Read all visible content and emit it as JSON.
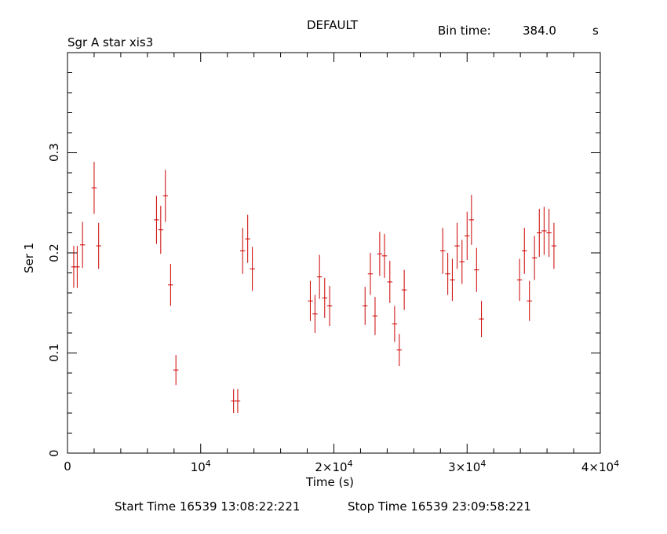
{
  "header": {
    "title": "DEFAULT",
    "source": "Sgr A star xis3",
    "bin_time_label": "Bin time:",
    "bin_time_value": "384.0",
    "bin_time_unit": "s"
  },
  "footer": {
    "start_time": "Start Time 16539 13:08:22:221",
    "stop_time": "Stop Time 16539 23:09:58:221"
  },
  "chart_data": {
    "type": "scatter",
    "title": "DEFAULT",
    "xlabel": "Time (s)",
    "ylabel": "Ser 1",
    "xlim": [
      0,
      40000
    ],
    "ylim": [
      0,
      0.4
    ],
    "grid": false,
    "color": "#cc0000",
    "x_ticks": [
      {
        "value": 0,
        "base": "0",
        "exp": ""
      },
      {
        "value": 10000,
        "base": "10",
        "exp": "4"
      },
      {
        "value": 20000,
        "base": "2×10",
        "exp": "4"
      },
      {
        "value": 30000,
        "base": "3×10",
        "exp": "4"
      },
      {
        "value": 40000,
        "base": "4×10",
        "exp": "4"
      }
    ],
    "y_ticks": [
      {
        "value": 0,
        "label": "0"
      },
      {
        "value": 0.1,
        "label": "0.1"
      },
      {
        "value": 0.2,
        "label": "0.2"
      },
      {
        "value": 0.3,
        "label": "0.3"
      }
    ],
    "xerr": 192,
    "series": [
      {
        "points": [
          {
            "x": 470,
            "y": 0.186,
            "dy": 0.021
          },
          {
            "x": 730,
            "y": 0.186,
            "dy": 0.021
          },
          {
            "x": 1130,
            "y": 0.208,
            "dy": 0.023
          },
          {
            "x": 2000,
            "y": 0.265,
            "dy": 0.026
          },
          {
            "x": 2340,
            "y": 0.207,
            "dy": 0.023
          },
          {
            "x": 6680,
            "y": 0.233,
            "dy": 0.024
          },
          {
            "x": 7000,
            "y": 0.223,
            "dy": 0.024
          },
          {
            "x": 7350,
            "y": 0.257,
            "dy": 0.026
          },
          {
            "x": 7740,
            "y": 0.168,
            "dy": 0.021
          },
          {
            "x": 8140,
            "y": 0.083,
            "dy": 0.015
          },
          {
            "x": 12470,
            "y": 0.052,
            "dy": 0.012
          },
          {
            "x": 12780,
            "y": 0.052,
            "dy": 0.012
          },
          {
            "x": 13150,
            "y": 0.202,
            "dy": 0.023
          },
          {
            "x": 13530,
            "y": 0.214,
            "dy": 0.024
          },
          {
            "x": 13880,
            "y": 0.184,
            "dy": 0.022
          },
          {
            "x": 18230,
            "y": 0.152,
            "dy": 0.02
          },
          {
            "x": 18580,
            "y": 0.139,
            "dy": 0.019
          },
          {
            "x": 18920,
            "y": 0.176,
            "dy": 0.022
          },
          {
            "x": 19310,
            "y": 0.155,
            "dy": 0.02
          },
          {
            "x": 19680,
            "y": 0.147,
            "dy": 0.02
          },
          {
            "x": 22340,
            "y": 0.147,
            "dy": 0.019
          },
          {
            "x": 22740,
            "y": 0.179,
            "dy": 0.021
          },
          {
            "x": 23090,
            "y": 0.137,
            "dy": 0.019
          },
          {
            "x": 23440,
            "y": 0.199,
            "dy": 0.022
          },
          {
            "x": 23800,
            "y": 0.197,
            "dy": 0.022
          },
          {
            "x": 24200,
            "y": 0.171,
            "dy": 0.021
          },
          {
            "x": 24560,
            "y": 0.129,
            "dy": 0.018
          },
          {
            "x": 24910,
            "y": 0.103,
            "dy": 0.016
          },
          {
            "x": 25280,
            "y": 0.163,
            "dy": 0.02
          },
          {
            "x": 28170,
            "y": 0.202,
            "dy": 0.023
          },
          {
            "x": 28550,
            "y": 0.179,
            "dy": 0.021
          },
          {
            "x": 28890,
            "y": 0.173,
            "dy": 0.021
          },
          {
            "x": 29250,
            "y": 0.207,
            "dy": 0.023
          },
          {
            "x": 29620,
            "y": 0.191,
            "dy": 0.022
          },
          {
            "x": 30000,
            "y": 0.217,
            "dy": 0.024
          },
          {
            "x": 30330,
            "y": 0.233,
            "dy": 0.025
          },
          {
            "x": 30710,
            "y": 0.183,
            "dy": 0.022
          },
          {
            "x": 31080,
            "y": 0.134,
            "dy": 0.018
          },
          {
            "x": 33940,
            "y": 0.173,
            "dy": 0.021
          },
          {
            "x": 34300,
            "y": 0.202,
            "dy": 0.023
          },
          {
            "x": 34680,
            "y": 0.152,
            "dy": 0.02
          },
          {
            "x": 35060,
            "y": 0.195,
            "dy": 0.022
          },
          {
            "x": 35420,
            "y": 0.22,
            "dy": 0.024
          },
          {
            "x": 35780,
            "y": 0.222,
            "dy": 0.024
          },
          {
            "x": 36150,
            "y": 0.22,
            "dy": 0.024
          },
          {
            "x": 36520,
            "y": 0.207,
            "dy": 0.023
          }
        ]
      }
    ]
  }
}
